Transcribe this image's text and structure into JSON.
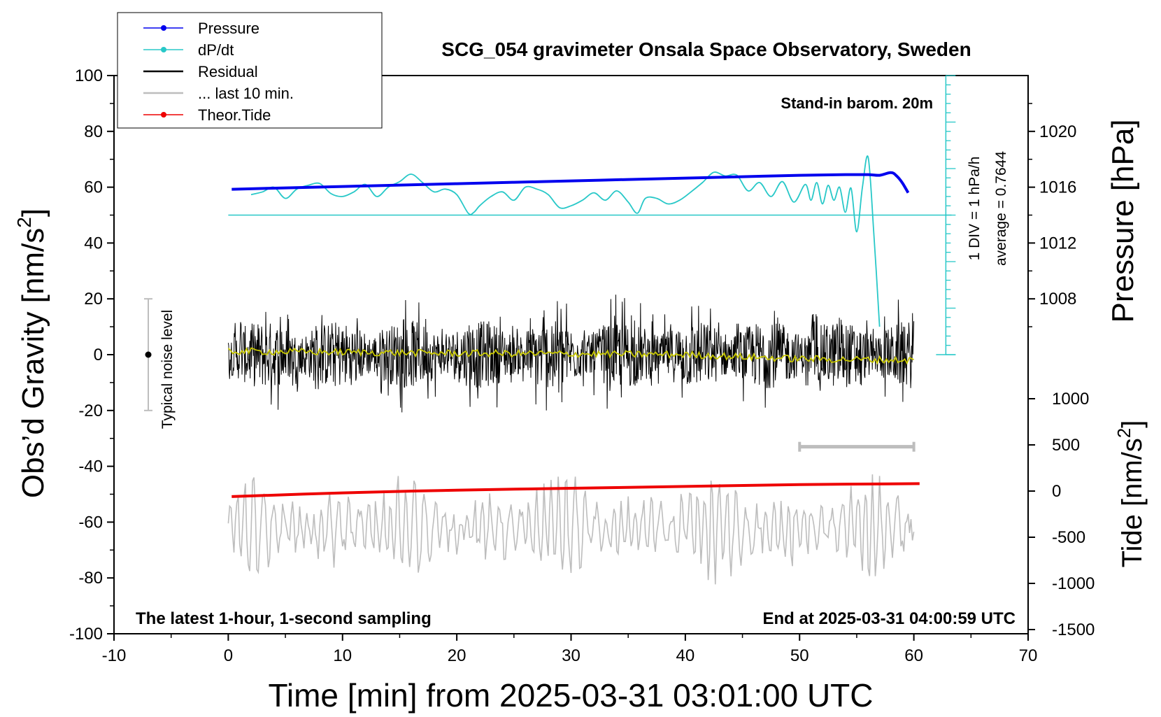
{
  "chart_data": {
    "type": "line",
    "title": "SCG_054 gravimeter Onsala Space Observatory, Sweden",
    "xlabel": "Time [min] from 2025-03-31 03:01:00 UTC",
    "ylabel_left_main": "Obs’d Gravity [nm/s",
    "ylabel_left_sup": "2",
    "ylabel_left_close": "]",
    "ylabel_right_pressure": "Pressure [hPa]",
    "ylabel_right_tide_main": "Tide [nm/s",
    "ylabel_right_tide_sup": "2",
    "ylabel_right_tide_close": "]",
    "xlim": [
      -10,
      70
    ],
    "ylim": [
      -100,
      100
    ],
    "pressure_range": [
      1004,
      1024
    ],
    "tide_range": [
      -1500,
      1500
    ],
    "x_ticks": [
      "-10",
      "0",
      "10",
      "20",
      "30",
      "40",
      "50",
      "60",
      "70"
    ],
    "y_ticks_left": [
      "100",
      "80",
      "60",
      "40",
      "20",
      "0",
      "-20",
      "-40",
      "-60",
      "-80",
      "-100"
    ],
    "y_ticks_pressure": [
      "1020",
      "1016",
      "1012",
      "1008"
    ],
    "y_ticks_tide": [
      "1000",
      "500",
      "0",
      "-500",
      "-1000",
      "-1500"
    ],
    "legend": {
      "placement": "top-left",
      "entries": [
        {
          "label": "Pressure",
          "color": "#0000ee",
          "marker": "dot"
        },
        {
          "label": "dP/dt",
          "color": "#28c8c8",
          "marker": "dot"
        },
        {
          "label": "Residual",
          "color": "#000000",
          "marker": "line"
        },
        {
          "label": "... last 10 min.",
          "color": "#bdbdbd",
          "marker": "line"
        },
        {
          "label": "Theor.Tide",
          "color": "#ee0000",
          "marker": "dot"
        }
      ]
    },
    "annotations": {
      "barometer": "Stand-in barom. 20m",
      "div_label": "1 DIV = 1 hPa/h",
      "average_label": "average = 0.7644",
      "noise_label": "Typical noise level",
      "bottom_left": "The latest 1-hour, 1-second sampling",
      "bottom_right": "End at 2025-03-31 04:00:59 UTC"
    },
    "series": [
      {
        "name": "Pressure",
        "axis": "pressure_hPa",
        "color": "#0000ee",
        "x": [
          0.3,
          5,
          10,
          15,
          20,
          25,
          30,
          35,
          40,
          45,
          50,
          54,
          56,
          57,
          58,
          58.5,
          59,
          59.5
        ],
        "values": [
          1015.85,
          1015.95,
          1016.05,
          1016.15,
          1016.25,
          1016.35,
          1016.45,
          1016.55,
          1016.65,
          1016.75,
          1016.85,
          1016.9,
          1016.9,
          1016.85,
          1017.05,
          1016.8,
          1016.3,
          1015.6
        ]
      },
      {
        "name": "dP/dt",
        "axis": "dpdt_div",
        "color": "#28c8c8",
        "baseline_gravity": 50,
        "div_nms2": 3.333,
        "x": [
          2,
          3,
          4,
          5,
          6,
          7,
          8,
          9,
          10,
          11,
          12,
          13,
          14,
          15,
          16,
          17,
          18,
          19,
          20,
          21,
          21.5,
          22,
          23,
          24,
          25,
          26,
          27,
          28,
          29,
          30,
          31,
          32,
          33,
          34,
          35,
          35.8,
          36.5,
          37.5,
          38.5,
          39.5,
          40.5,
          41.5,
          42.5,
          43.5,
          44.5,
          45.5,
          46.5,
          47.5,
          48.5,
          49.5,
          50.5,
          51,
          51.5,
          52,
          52.5,
          53,
          53.5,
          54,
          54.5,
          55,
          55.5,
          56,
          56.5,
          57
        ],
        "values": [
          2.2,
          2.5,
          3.0,
          1.8,
          2.8,
          3.2,
          3.4,
          2.3,
          2.0,
          2.5,
          3.3,
          2.0,
          3.0,
          3.6,
          4.4,
          3.5,
          2.5,
          2.8,
          2.2,
          0.2,
          0.3,
          1.0,
          2.0,
          2.5,
          1.6,
          3.0,
          2.8,
          2.2,
          0.8,
          1.0,
          1.6,
          2.4,
          1.6,
          2.6,
          1.4,
          0.2,
          1.8,
          1.8,
          1.2,
          1.6,
          2.5,
          3.5,
          4.6,
          4.2,
          4.3,
          2.6,
          3.5,
          2.0,
          3.6,
          1.4,
          3.3,
          1.6,
          3.5,
          1.2,
          3.2,
          1.6,
          3.0,
          0.3,
          2.9,
          -1.8,
          3.0,
          6.2,
          -2.0,
          -12.0
        ]
      },
      {
        "name": "Residual",
        "axis": "gravity_nms2",
        "color": "#000000",
        "x_range": [
          0,
          60
        ],
        "noise_amplitude": 22,
        "mean": 0
      },
      {
        "name": "Residual (smoothed)",
        "axis": "gravity_nms2",
        "color": "#c8c800",
        "x": [
          0,
          10,
          20,
          30,
          40,
          50,
          60
        ],
        "values": [
          1.2,
          0.9,
          0.5,
          0.3,
          0,
          -1.5,
          -2
        ]
      },
      {
        "name": "... last 10 min.",
        "axis": "gravity_nms2",
        "color": "#bdbdbd",
        "x_range": [
          0,
          60
        ],
        "center": -62,
        "amplitude": 16
      },
      {
        "name": "Theor.Tide",
        "axis": "tide_nms2",
        "color": "#ee0000",
        "x": [
          0.3,
          10,
          20,
          30,
          40,
          50,
          60.5
        ],
        "values": [
          -60,
          -20,
          10,
          30,
          50,
          70,
          80
        ]
      }
    ],
    "noise_bar": {
      "x": -7,
      "low": -20,
      "high": 20,
      "center": 0
    },
    "last10_marker": {
      "x_start": 50,
      "x_end": 60,
      "y": -33
    }
  }
}
